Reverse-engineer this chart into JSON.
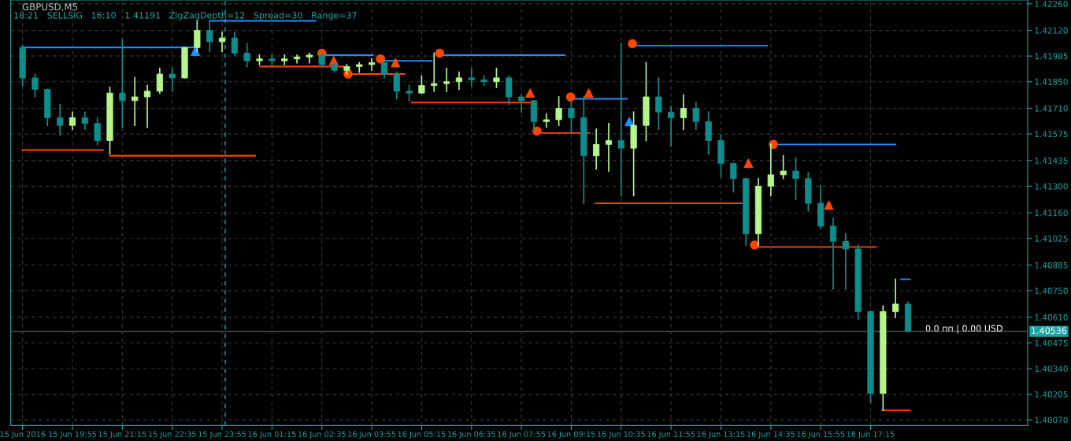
{
  "chart_data": {
    "type": "candlestick",
    "title": "GBPUSD,M5",
    "subtitle": "18:21   SELLSIG   16:10   1.41191   ZigZagDepth=12   Spread=30   Range=37",
    "x": [
      "2016-06-15T18:35",
      "2016-06-15T18:55",
      "2016-06-15T19:15",
      "2016-06-15T19:35",
      "2016-06-15T19:55",
      "2016-06-15T20:15",
      "2016-06-15T20:35",
      "2016-06-15T20:55",
      "2016-06-15T21:15",
      "2016-06-15T21:35",
      "2016-06-15T21:55",
      "2016-06-15T22:15",
      "2016-06-15T22:35",
      "2016-06-15T22:55",
      "2016-06-15T23:15",
      "2016-06-15T23:35",
      "2016-06-15T23:55",
      "2016-06-16T00:15",
      "2016-06-16T00:35",
      "2016-06-16T00:55",
      "2016-06-16T01:15",
      "2016-06-16T01:35",
      "2016-06-16T01:55",
      "2016-06-16T02:15",
      "2016-06-16T02:35",
      "2016-06-16T02:55",
      "2016-06-16T03:15",
      "2016-06-16T03:35",
      "2016-06-16T03:55",
      "2016-06-16T04:15",
      "2016-06-16T04:35",
      "2016-06-16T04:55",
      "2016-06-16T05:15",
      "2016-06-16T05:35",
      "2016-06-16T05:55",
      "2016-06-16T06:15",
      "2016-06-16T06:35",
      "2016-06-16T06:55",
      "2016-06-16T07:15",
      "2016-06-16T07:35",
      "2016-06-16T07:55",
      "2016-06-16T08:15",
      "2016-06-16T08:35",
      "2016-06-16T08:55",
      "2016-06-16T09:15",
      "2016-06-16T09:35",
      "2016-06-16T09:55",
      "2016-06-16T10:15",
      "2016-06-16T10:35",
      "2016-06-16T10:55",
      "2016-06-16T11:15",
      "2016-06-16T11:35",
      "2016-06-16T11:55",
      "2016-06-16T12:15",
      "2016-06-16T12:35",
      "2016-06-16T12:55",
      "2016-06-16T13:15",
      "2016-06-16T13:35",
      "2016-06-16T13:55",
      "2016-06-16T14:15",
      "2016-06-16T14:35",
      "2016-06-16T14:55",
      "2016-06-16T15:15",
      "2016-06-16T15:35",
      "2016-06-16T15:55",
      "2016-06-16T16:15",
      "2016-06-16T16:35",
      "2016-06-16T16:55",
      "2016-06-16T17:15",
      "2016-06-16T17:35",
      "2016-06-16T17:55",
      "2016-06-16T18:15"
    ],
    "ohlc": [
      [
        1.4203,
        1.4204,
        1.4183,
        1.4187
      ],
      [
        1.4187,
        1.4189,
        1.4177,
        1.4181
      ],
      [
        1.4181,
        1.4181,
        1.4162,
        1.4166
      ],
      [
        1.4166,
        1.4173,
        1.4157,
        1.4162
      ],
      [
        1.4162,
        1.4169,
        1.416,
        1.4166
      ],
      [
        1.4166,
        1.4169,
        1.416,
        1.4163
      ],
      [
        1.4163,
        1.4166,
        1.4152,
        1.4154
      ],
      [
        1.4154,
        1.4182,
        1.4147,
        1.4179
      ],
      [
        1.4179,
        1.4207,
        1.4161,
        1.4175
      ],
      [
        1.4175,
        1.4187,
        1.4162,
        1.4177
      ],
      [
        1.4177,
        1.4183,
        1.4161,
        1.418
      ],
      [
        1.418,
        1.4192,
        1.4179,
        1.4189
      ],
      [
        1.4189,
        1.4192,
        1.418,
        1.4187
      ],
      [
        1.4187,
        1.4203,
        1.4187,
        1.4203
      ],
      [
        1.4203,
        1.4217,
        1.4201,
        1.4212
      ],
      [
        1.4212,
        1.4217,
        1.4201,
        1.4206
      ],
      [
        1.4206,
        1.4211,
        1.4201,
        1.4208
      ],
      [
        1.4208,
        1.4211,
        1.4199,
        1.42
      ],
      [
        1.42,
        1.4205,
        1.4193,
        1.4196
      ],
      [
        1.4196,
        1.4199,
        1.4194,
        1.4197
      ],
      [
        1.4197,
        1.4199,
        1.4194,
        1.4196
      ],
      [
        1.4196,
        1.4199,
        1.4194,
        1.4197
      ],
      [
        1.4197,
        1.4199,
        1.4195,
        1.4198
      ],
      [
        1.4198,
        1.42,
        1.4195,
        1.4199
      ],
      [
        1.4199,
        1.42,
        1.4193,
        1.4194
      ],
      [
        1.4194,
        1.4195,
        1.419,
        1.4191
      ],
      [
        1.4191,
        1.4194,
        1.4189,
        1.4193
      ],
      [
        1.4193,
        1.4195,
        1.419,
        1.4194
      ],
      [
        1.4194,
        1.4197,
        1.4191,
        1.4195
      ],
      [
        1.4195,
        1.4196,
        1.4187,
        1.4189
      ],
      [
        1.4189,
        1.419,
        1.4176,
        1.418
      ],
      [
        1.418,
        1.4183,
        1.4175,
        1.4179
      ],
      [
        1.4179,
        1.4188,
        1.4179,
        1.4183
      ],
      [
        1.4183,
        1.42,
        1.418,
        1.4184
      ],
      [
        1.4184,
        1.4192,
        1.418,
        1.4185
      ],
      [
        1.4185,
        1.419,
        1.4181,
        1.4187
      ],
      [
        1.4187,
        1.4192,
        1.4183,
        1.4186
      ],
      [
        1.4186,
        1.4188,
        1.4183,
        1.4185
      ],
      [
        1.4185,
        1.4192,
        1.4182,
        1.4187
      ],
      [
        1.4187,
        1.4188,
        1.4173,
        1.4177
      ],
      [
        1.4177,
        1.4178,
        1.4169,
        1.4175
      ],
      [
        1.4175,
        1.4175,
        1.4159,
        1.4164
      ],
      [
        1.4164,
        1.4168,
        1.4161,
        1.4165
      ],
      [
        1.4165,
        1.4177,
        1.4162,
        1.4171
      ],
      [
        1.4171,
        1.4176,
        1.4158,
        1.4166
      ],
      [
        1.4166,
        1.4177,
        1.4121,
        1.4146
      ],
      [
        1.4146,
        1.416,
        1.4139,
        1.4152
      ],
      [
        1.4152,
        1.4163,
        1.4138,
        1.4154
      ],
      [
        1.4154,
        1.4205,
        1.4125,
        1.415
      ],
      [
        1.415,
        1.4169,
        1.4125,
        1.4162
      ],
      [
        1.4162,
        1.4195,
        1.4154,
        1.4177
      ],
      [
        1.4177,
        1.4187,
        1.416,
        1.4169
      ],
      [
        1.4169,
        1.4172,
        1.4151,
        1.4166
      ],
      [
        1.4166,
        1.4178,
        1.416,
        1.4171
      ],
      [
        1.4171,
        1.4174,
        1.416,
        1.4164
      ],
      [
        1.4164,
        1.4169,
        1.4147,
        1.4154
      ],
      [
        1.4154,
        1.4157,
        1.4135,
        1.4142
      ],
      [
        1.4142,
        1.4142,
        1.4127,
        1.4134
      ],
      [
        1.4134,
        1.4134,
        1.4099,
        1.4105
      ],
      [
        1.4105,
        1.4134,
        1.4099,
        1.413
      ],
      [
        1.413,
        1.4152,
        1.4125,
        1.4136
      ],
      [
        1.4136,
        1.4146,
        1.4134,
        1.4138
      ],
      [
        1.4138,
        1.4145,
        1.4123,
        1.4134
      ],
      [
        1.4134,
        1.4137,
        1.4117,
        1.4121
      ],
      [
        1.4121,
        1.413,
        1.4108,
        1.4109
      ],
      [
        1.4109,
        1.4113,
        1.4076,
        1.4101
      ],
      [
        1.4101,
        1.4105,
        1.4076,
        1.4097
      ],
      [
        1.4097,
        1.4099,
        1.406,
        1.4064
      ],
      [
        1.4064,
        1.4064,
        1.4016,
        1.4021
      ],
      [
        1.4021,
        1.4067,
        1.4012,
        1.4064
      ],
      [
        1.4064,
        1.4081,
        1.4061,
        1.4068
      ],
      [
        1.4068,
        1.4069,
        1.40536,
        1.40536
      ]
    ],
    "colors": [
      "#0f8c8c",
      "#0f8c8c",
      "#0f8c8c",
      "#0f8c8c",
      "#b4f58c",
      "#0f8c8c",
      "#0f8c8c",
      "#b4f58c",
      "#0f8c8c",
      "#b4f58c",
      "#b4f58c",
      "#b4f58c",
      "#0f8c8c",
      "#b4f58c",
      "#b4f58c",
      "#0f8c8c",
      "#b4f58c",
      "#0f8c8c",
      "#0f8c8c",
      "#b4f58c",
      "#0f8c8c",
      "#b4f58c",
      "#b4f58c",
      "#b4f58c",
      "#0f8c8c",
      "#0f8c8c",
      "#b4f58c",
      "#b4f58c",
      "#b4f58c",
      "#0f8c8c",
      "#0f8c8c",
      "#0f8c8c",
      "#b4f58c",
      "#b4f58c",
      "#b4f58c",
      "#b4f58c",
      "#0f8c8c",
      "#0f8c8c",
      "#b4f58c",
      "#0f8c8c",
      "#0f8c8c",
      "#0f8c8c",
      "#b4f58c",
      "#b4f58c",
      "#0f8c8c",
      "#0f8c8c",
      "#b4f58c",
      "#b4f58c",
      "#0f8c8c",
      "#b4f58c",
      "#b4f58c",
      "#0f8c8c",
      "#0f8c8c",
      "#b4f58c",
      "#0f8c8c",
      "#0f8c8c",
      "#0f8c8c",
      "#0f8c8c",
      "#0f8c8c",
      "#b4f58c",
      "#b4f58c",
      "#b4f58c",
      "#0f8c8c",
      "#0f8c8c",
      "#0f8c8c",
      "#0f8c8c",
      "#0f8c8c",
      "#0f8c8c",
      "#0f8c8c",
      "#b4f58c",
      "#b4f58c",
      "#0f8c8c"
    ],
    "series": [
      {
        "type": "line",
        "color": "#1e90ff",
        "x": [
          "2016-06-15T18:35",
          "2016-06-15T23:10"
        ],
        "values": [
          1.4203,
          1.4203
        ]
      },
      {
        "type": "line",
        "color": "#1e90ff",
        "x": [
          "2016-06-15T23:35",
          "2016-06-16T02:25"
        ],
        "values": [
          1.4217,
          1.4217
        ]
      },
      {
        "type": "line",
        "color": "#1e90ff",
        "x": [
          "2016-06-16T02:35",
          "2016-06-16T03:57"
        ],
        "values": [
          1.4199,
          1.4199
        ]
      },
      {
        "type": "line",
        "color": "#1e90ff",
        "x": [
          "2016-06-16T04:09",
          "2016-06-16T05:31"
        ],
        "values": [
          1.4196,
          1.4196
        ]
      },
      {
        "type": "line",
        "color": "#1e90ff",
        "x": [
          "2016-06-16T05:44",
          "2016-06-16T09:04"
        ],
        "values": [
          1.4199,
          1.4199
        ]
      },
      {
        "type": "line",
        "color": "#1e90ff",
        "x": [
          "2016-06-16T09:14",
          "2016-06-16T10:44"
        ],
        "values": [
          1.4176,
          1.4176
        ]
      },
      {
        "type": "line",
        "color": "#1e90ff",
        "x": [
          "2016-06-16T10:53",
          "2016-06-16T14:29"
        ],
        "values": [
          1.4204,
          1.4204
        ]
      },
      {
        "type": "line",
        "color": "#1e90ff",
        "x": [
          "2016-06-16T14:39",
          "2016-06-16T17:55"
        ],
        "values": [
          1.4152,
          1.4152
        ]
      },
      {
        "type": "line",
        "color": "#1e90ff",
        "x": [
          "2016-06-16T18:04",
          "2016-06-16T18:18"
        ],
        "values": [
          1.4081,
          1.4081
        ]
      },
      {
        "type": "line",
        "color": "#ff4500",
        "x": [
          "2016-06-15T18:35",
          "2016-06-15T20:44"
        ],
        "values": [
          1.4149,
          1.4149
        ]
      },
      {
        "type": "line",
        "color": "#ff4500",
        "x": [
          "2016-06-15T20:55",
          "2016-06-16T00:48"
        ],
        "values": [
          1.4146,
          1.4146
        ]
      },
      {
        "type": "line",
        "color": "#ff4500",
        "x": [
          "2016-06-16T00:56",
          "2016-06-16T03:09"
        ],
        "values": [
          1.4193,
          1.4193
        ]
      },
      {
        "type": "line",
        "color": "#ff4500",
        "x": [
          "2016-06-16T03:17",
          "2016-06-16T04:47"
        ],
        "values": [
          1.4189,
          1.4189
        ]
      },
      {
        "type": "line",
        "color": "#ff4500",
        "x": [
          "2016-06-16T04:59",
          "2016-06-16T08:10"
        ],
        "values": [
          1.4174,
          1.4174
        ]
      },
      {
        "type": "line",
        "color": "#ff4500",
        "x": [
          "2016-06-16T08:20",
          "2016-06-16T09:44"
        ],
        "values": [
          1.4158,
          1.4158
        ]
      },
      {
        "type": "line",
        "color": "#ff4500",
        "x": [
          "2016-06-16T09:54",
          "2016-06-16T13:48"
        ],
        "values": [
          1.4121,
          1.4121
        ]
      },
      {
        "type": "line",
        "color": "#ff4500",
        "x": [
          "2016-06-16T14:09",
          "2016-06-16T17:24"
        ],
        "values": [
          1.4098,
          1.4098
        ]
      },
      {
        "type": "line",
        "color": "#ff4500",
        "x": [
          "2016-06-16T17:34",
          "2016-06-16T18:18"
        ],
        "values": [
          1.4012,
          1.4012
        ]
      },
      {
        "type": "scatter",
        "marker": "circle",
        "color": "#ff4500",
        "x": [
          "2016-06-16T02:35",
          "2016-06-16T03:17",
          "2016-06-16T04:09",
          "2016-06-16T05:44",
          "2016-06-16T08:20",
          "2016-06-16T09:14",
          "2016-06-16T10:53",
          "2016-06-16T14:09",
          "2016-06-16T14:39"
        ],
        "values": [
          1.42,
          1.4189,
          1.4197,
          1.42,
          1.4159,
          1.4177,
          1.4205,
          1.4099,
          1.4152
        ]
      },
      {
        "type": "scatter",
        "marker": "triangle",
        "color": "#1e90ff",
        "x": [
          "2016-06-15T23:12",
          "2016-06-16T10:48"
        ],
        "values": [
          1.4201,
          1.4164
        ]
      },
      {
        "type": "scatter",
        "marker": "triangle",
        "color": "#ff4500",
        "x": [
          "2016-06-16T02:54",
          "2016-06-16T04:33",
          "2016-06-16T08:09",
          "2016-06-16T09:43",
          "2016-06-16T13:59",
          "2016-06-16T16:08"
        ],
        "values": [
          1.4196,
          1.4195,
          1.4179,
          1.4179,
          1.4142,
          1.412
        ]
      }
    ],
    "ref_lines": [
      {
        "axis": "x",
        "value": "2016-06-16T00:00",
        "label": null,
        "color": "#1fa3a3",
        "line_style": "dashed"
      },
      {
        "axis": "y",
        "value": 1.40536,
        "label": "1.40536",
        "color": "#505050",
        "line_style": "solid"
      }
    ],
    "annotations": [
      "0.0 пп | 0.00 USD"
    ],
    "xlim": [
      "2016-06-15T18:16",
      "2016-06-16T21:27"
    ],
    "xticks": [
      {
        "value": "2016-06-15T18:35",
        "label": "15 Jun 2016"
      },
      {
        "value": "2016-06-15T19:55",
        "label": "15 Jun 19:55"
      },
      {
        "value": "2016-06-15T21:15",
        "label": "15 Jun 21:15"
      },
      {
        "value": "2016-06-15T22:35",
        "label": "15 Jun 22:35"
      },
      {
        "value": "2016-06-15T23:55",
        "label": "15 Jun 23:55"
      },
      {
        "value": "2016-06-16T01:15",
        "label": "16 Jun 01:15"
      },
      {
        "value": "2016-06-16T02:35",
        "label": "16 Jun 02:35"
      },
      {
        "value": "2016-06-16T03:55",
        "label": "16 Jun 03:55"
      },
      {
        "value": "2016-06-16T05:15",
        "label": "16 Jun 05:15"
      },
      {
        "value": "2016-06-16T06:35",
        "label": "16 Jun 06:35"
      },
      {
        "value": "2016-06-16T07:55",
        "label": "16 Jun 07:55"
      },
      {
        "value": "2016-06-16T09:15",
        "label": "16 Jun 09:15"
      },
      {
        "value": "2016-06-16T10:35",
        "label": "16 Jun 10:35"
      },
      {
        "value": "2016-06-16T11:55",
        "label": "16 Jun 11:55"
      },
      {
        "value": "2016-06-16T13:15",
        "label": "16 Jun 13:15"
      },
      {
        "value": "2016-06-16T14:35",
        "label": "16 Jun 14:35"
      },
      {
        "value": "2016-06-16T15:55",
        "label": "16 Jun 15:55"
      },
      {
        "value": "2016-06-16T17:15",
        "label": "16 Jun 17:15"
      }
    ],
    "ylim": [
      1.4004,
      1.4228
    ],
    "yticks": [
      {
        "value": 1.4007,
        "label": "1.40070"
      },
      {
        "value": 1.40205,
        "label": "1.40205"
      },
      {
        "value": 1.4034,
        "label": "1.40340"
      },
      {
        "value": 1.40475,
        "label": "1.40475"
      },
      {
        "value": 1.4061,
        "label": "1.40610"
      },
      {
        "value": 1.4075,
        "label": "1.40750"
      },
      {
        "value": 1.40885,
        "label": "1.40885"
      },
      {
        "value": 1.41025,
        "label": "1.41025"
      },
      {
        "value": 1.4116,
        "label": "1.41160"
      },
      {
        "value": 1.413,
        "label": "1.41300"
      },
      {
        "value": 1.41435,
        "label": "1.41435"
      },
      {
        "value": 1.41575,
        "label": "1.41575"
      },
      {
        "value": 1.4171,
        "label": "1.41710"
      },
      {
        "value": 1.4185,
        "label": "1.41850"
      },
      {
        "value": 1.41985,
        "label": "1.41985"
      },
      {
        "value": 1.4212,
        "label": "1.42120"
      },
      {
        "value": 1.4226,
        "label": "1.42260"
      }
    ],
    "grid": true
  }
}
